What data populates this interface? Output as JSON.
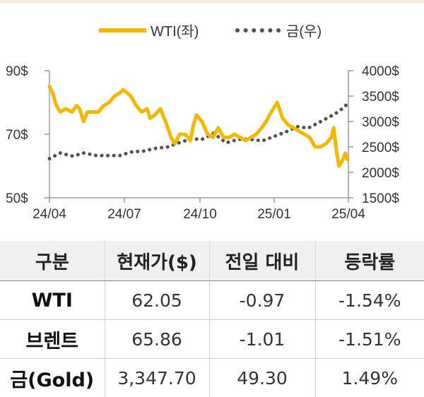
{
  "chart_data": {
    "type": "line",
    "legend_position": "top",
    "x_ticks": [
      "24/04",
      "24/07",
      "24/10",
      "25/01",
      "25/04"
    ],
    "y_left": {
      "ticks": [
        "90$",
        "70$",
        "50$"
      ],
      "ylim": [
        50,
        90
      ]
    },
    "y_right": {
      "ticks": [
        "4000$",
        "3500$",
        "3000$",
        "2500$",
        "2000$",
        "1500$"
      ],
      "ylim": [
        1500,
        4000
      ]
    },
    "colors": {
      "wti": "#f5b800",
      "gold": "#5a5048"
    },
    "series": [
      {
        "name": "WTI(좌)",
        "axis": "left",
        "x": [
          "2024-04-01",
          "2024-04-05",
          "2024-04-10",
          "2024-04-15",
          "2024-04-22",
          "2024-04-30",
          "2024-05-06",
          "2024-05-10",
          "2024-05-15",
          "2024-05-20",
          "2024-05-27",
          "2024-06-03",
          "2024-06-10",
          "2024-06-17",
          "2024-06-24",
          "2024-07-01",
          "2024-07-05",
          "2024-07-10",
          "2024-07-15",
          "2024-07-22",
          "2024-07-29",
          "2024-08-05",
          "2024-08-09",
          "2024-08-15",
          "2024-08-22",
          "2024-08-29",
          "2024-09-05",
          "2024-09-10",
          "2024-09-16",
          "2024-09-23",
          "2024-09-30",
          "2024-10-04",
          "2024-10-08",
          "2024-10-15",
          "2024-10-22",
          "2024-10-29",
          "2024-11-05",
          "2024-11-12",
          "2024-11-19",
          "2024-11-26",
          "2024-12-03",
          "2024-12-10",
          "2024-12-17",
          "2024-12-24",
          "2024-12-31",
          "2025-01-06",
          "2025-01-10",
          "2025-01-15",
          "2025-01-20",
          "2025-01-27",
          "2025-02-03",
          "2025-02-10",
          "2025-02-17",
          "2025-02-24",
          "2025-03-03",
          "2025-03-10",
          "2025-03-17",
          "2025-03-24",
          "2025-03-31",
          "2025-04-03",
          "2025-04-07",
          "2025-04-10",
          "2025-04-15",
          "2025-04-18",
          "2025-04-21"
        ],
        "values": [
          85,
          83,
          79,
          77,
          78,
          77,
          79,
          78,
          74,
          77,
          77,
          77,
          79,
          80,
          82,
          83,
          84,
          83,
          82,
          79,
          77,
          78,
          75,
          76,
          78,
          74,
          69,
          67,
          70,
          70,
          68,
          73,
          76,
          74,
          70,
          69,
          72,
          69,
          69,
          70,
          69,
          68,
          69,
          70,
          72,
          74,
          76,
          78,
          80,
          75,
          73,
          72,
          71,
          70,
          69,
          66,
          66,
          67,
          69,
          72,
          64,
          60,
          62,
          64,
          62.05
        ]
      },
      {
        "name": "금(우)",
        "axis": "right",
        "x": [
          "2024-04-01",
          "2024-04-15",
          "2024-05-01",
          "2024-05-15",
          "2024-06-01",
          "2024-06-15",
          "2024-07-01",
          "2024-07-15",
          "2024-08-01",
          "2024-08-15",
          "2024-09-01",
          "2024-09-15",
          "2024-10-01",
          "2024-10-15",
          "2024-10-30",
          "2024-11-15",
          "2024-12-01",
          "2024-12-15",
          "2025-01-01",
          "2025-01-15",
          "2025-02-01",
          "2025-02-15",
          "2025-03-01",
          "2025-03-15",
          "2025-04-01",
          "2025-04-10",
          "2025-04-21"
        ],
        "values": [
          2270,
          2380,
          2320,
          2380,
          2330,
          2330,
          2330,
          2400,
          2420,
          2470,
          2500,
          2580,
          2660,
          2650,
          2770,
          2580,
          2650,
          2650,
          2620,
          2700,
          2800,
          2900,
          2870,
          2980,
          3120,
          3200,
          3347.7
        ]
      }
    ]
  },
  "table": {
    "headers": [
      "구분",
      "현재가($)",
      "전일 대비",
      "등락률"
    ],
    "rows": [
      {
        "name": "WTI",
        "price": "62.05",
        "change": "-0.97",
        "rate": "-1.54%"
      },
      {
        "name": "브렌트",
        "price": "65.86",
        "change": "-1.01",
        "rate": "-1.51%"
      },
      {
        "name": "금(Gold)",
        "price": "3,347.70",
        "change": "49.30",
        "rate": "1.49%"
      }
    ]
  }
}
